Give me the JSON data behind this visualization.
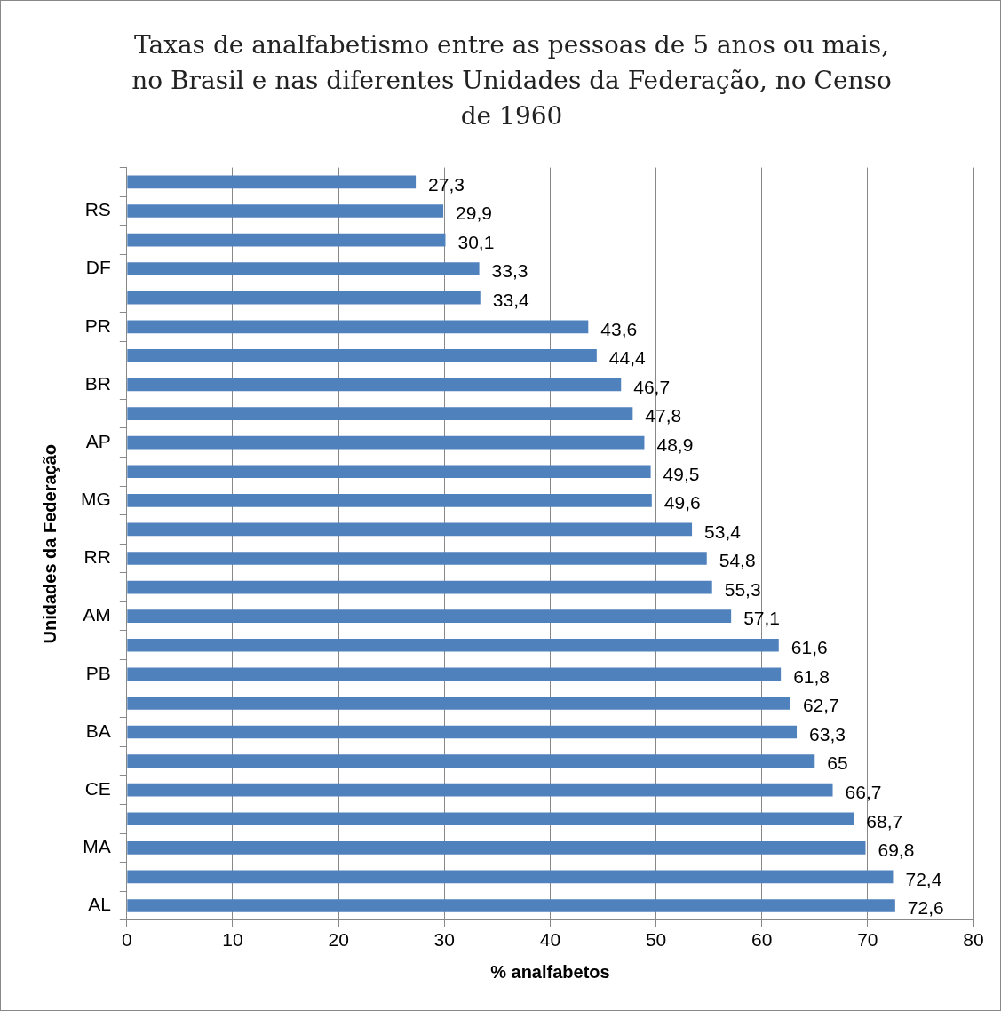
{
  "chart_data": {
    "type": "bar",
    "orientation": "horizontal",
    "title": "Taxas de analfabetismo entre as pessoas de 5 anos ou mais, no Brasil e nas diferentes Unidades da Federação, no Censo de 1960",
    "xlabel": "% analfabetos",
    "ylabel": "Unidades da Federação",
    "categories": [
      null,
      "RS",
      null,
      "DF",
      null,
      "PR",
      null,
      "BR",
      null,
      "AP",
      null,
      "MG",
      null,
      "RR",
      null,
      "AM",
      null,
      "PB",
      null,
      "BA",
      null,
      "CE",
      null,
      "MA",
      null,
      "AL"
    ],
    "values": [
      27.3,
      29.9,
      30.1,
      33.3,
      33.4,
      43.6,
      44.4,
      46.7,
      47.8,
      48.9,
      49.5,
      49.6,
      53.4,
      54.8,
      55.3,
      57.1,
      61.6,
      61.8,
      62.7,
      63.3,
      65,
      66.7,
      68.7,
      69.8,
      72.4,
      72.6
    ],
    "value_labels": [
      "27,3",
      "29,9",
      "30,1",
      "33,3",
      "33,4",
      "43,6",
      "44,4",
      "46,7",
      "47,8",
      "48,9",
      "49,5",
      "49,6",
      "53,4",
      "54,8",
      "55,3",
      "57,1",
      "61,6",
      "61,8",
      "62,7",
      "63,3",
      "65",
      "66,7",
      "68,7",
      "69,8",
      "72,4",
      "72,6"
    ],
    "color": "#4f81bd",
    "xlim": [
      0,
      80
    ],
    "xticks": [
      0,
      10,
      20,
      30,
      40,
      50,
      60,
      70,
      80
    ],
    "grid": "x",
    "legend": false
  }
}
